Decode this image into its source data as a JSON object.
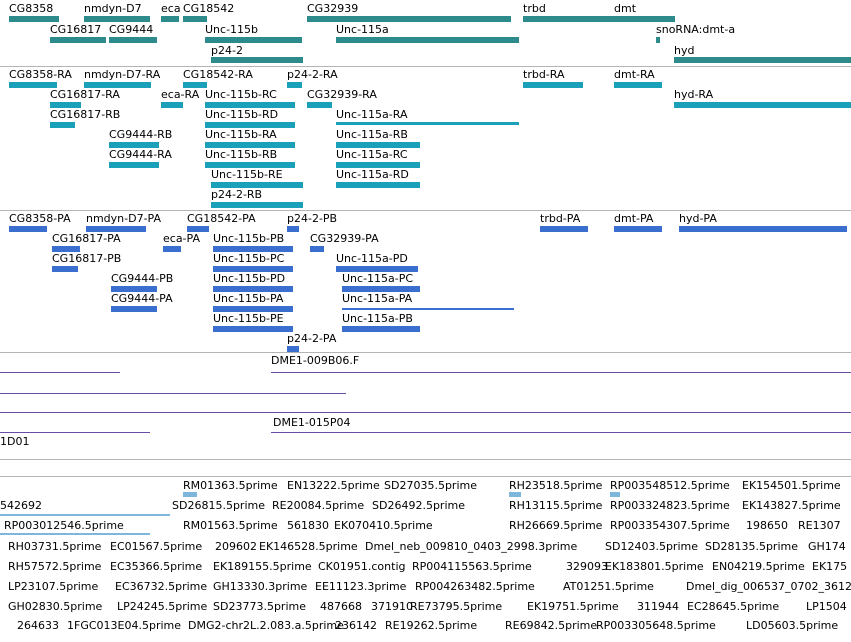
{
  "tracks": {
    "genes": [
      "CG8358",
      "nmdyn-D7",
      "eca",
      "CG18542",
      "CG32939",
      "trbd",
      "dmt",
      "CG16817",
      "CG9444",
      "Unc-115b",
      "Unc-115a",
      "snoRNA:dmt-a",
      "p24-2",
      "hyd"
    ],
    "transcripts": [
      "CG8358-RA",
      "nmdyn-D7-RA",
      "CG18542-RA",
      "p24-2-RA",
      "trbd-RA",
      "dmt-RA",
      "CG16817-RA",
      "eca-RA",
      "Unc-115b-RC",
      "CG32939-RA",
      "hyd-RA",
      "CG16817-RB",
      "Unc-115b-RD",
      "Unc-115a-RA",
      "CG9444-RB",
      "Unc-115b-RA",
      "Unc-115a-RB",
      "CG9444-RA",
      "Unc-115b-RB",
      "Unc-115a-RC",
      "Unc-115b-RE",
      "Unc-115a-RD",
      "p24-2-RB"
    ],
    "proteins": [
      "CG8358-PA",
      "nmdyn-D7-PA",
      "CG18542-PA",
      "p24-2-PB",
      "trbd-PA",
      "dmt-PA",
      "hyd-PA",
      "CG16817-PA",
      "eca-PA",
      "Unc-115b-PB",
      "CG32939-PA",
      "CG16817-PB",
      "Unc-115b-PC",
      "Unc-115a-PD",
      "CG9444-PB",
      "Unc-115b-PD",
      "Unc-115a-PC",
      "CG9444-PA",
      "Unc-115b-PA",
      "Unc-115a-PA",
      "Unc-115b-PE",
      "Unc-115a-PB",
      "p24-2-PA"
    ],
    "clones": [
      "DME1-009B06.F",
      "DME1-015P04",
      "1D01"
    ],
    "ests": [
      "RM01363.5prime",
      "EN13222.5prime",
      "SD27035.5prime",
      "RH23518.5prime",
      "RP003548512.5prime",
      "EK154501.5prime",
      "542692",
      "SD26815.5prime",
      "RE20084.5prime",
      "SD26492.5prime",
      "RH13115.5prime",
      "RP003324823.5prime",
      "EK143827.5prime",
      "RP003012546.5prime",
      "RM01563.5prime",
      "561830",
      "EK070410.5prime",
      "RH26669.5prime",
      "RP003354307.5prime",
      "198650",
      "RE1307",
      "RH03731.5prime",
      "EC01567.5prime",
      "209602",
      "EK146528.5prime",
      "Dmel_neb_009810_0403_2998.3prime",
      "SD12403.5prime",
      "SD28135.5prime",
      "GH174",
      "RH57572.5prime",
      "EC35366.5prime",
      "EK189155.5prime",
      "CK01951.contig",
      "RP004115563.5prime",
      "329093",
      "EK183801.5prime",
      "EN04219.5prime",
      "EK175",
      "LP23107.5prime",
      "EC36732.5prime",
      "GH13330.3prime",
      "EE11123.3prime",
      "RP004263482.5prime",
      "AT01251.5prime",
      "Dmel_dig_006537_0702_3612.",
      "GH02830.5prime",
      "LP24245.5prime",
      "SD23773.5prime",
      "487668",
      "371910",
      "RE73795.5prime",
      "EK19751.5prime",
      "311944",
      "EC28645.5prime",
      "LP1504",
      "264633",
      "1FGC013E04.5prime",
      "DMG2-chr2L.2.083.a.5prime",
      "236142",
      "RE19262.5prime",
      "RE69842.5prime",
      "RP003305648.5prime",
      "LD05603.5prime"
    ]
  }
}
